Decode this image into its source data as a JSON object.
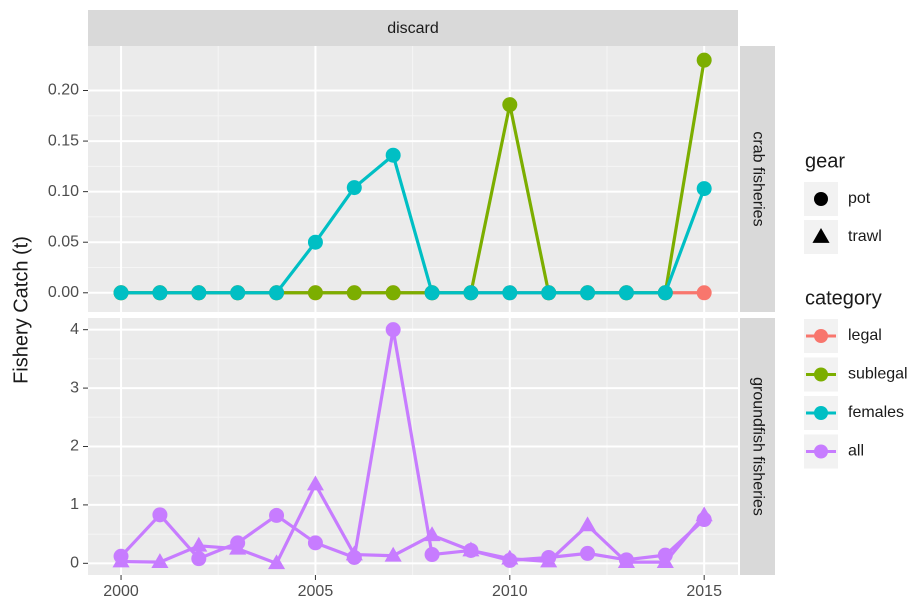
{
  "chart_data": {
    "type": "line",
    "facet_column": "discard",
    "y_label": "Fishery Catch (t)",
    "x": [
      2000,
      2001,
      2002,
      2003,
      2004,
      2005,
      2006,
      2007,
      2008,
      2009,
      2010,
      2011,
      2012,
      2013,
      2014,
      2015
    ],
    "xlim": [
      1999.15,
      2015.87
    ],
    "xticks": [
      2000,
      2005,
      2010,
      2015
    ],
    "grid": true,
    "gear_legend": {
      "title": "gear",
      "items": [
        "pot",
        "trawl"
      ]
    },
    "category_legend": {
      "title": "category",
      "items": [
        {
          "name": "legal",
          "color": "#F8766D"
        },
        {
          "name": "sublegal",
          "color": "#7CAE00"
        },
        {
          "name": "females",
          "color": "#00BFC4"
        },
        {
          "name": "all",
          "color": "#C77CFF"
        }
      ]
    },
    "panels": [
      {
        "label": "crab fisheries",
        "ylim": [
          -0.019,
          0.244
        ],
        "yticks": [
          {
            "value": 0,
            "label": "0.00"
          },
          {
            "value": 0.05,
            "label": "0.05"
          },
          {
            "value": 0.1,
            "label": "0.10"
          },
          {
            "value": 0.15,
            "label": "0.15"
          },
          {
            "value": 0.2,
            "label": "0.20"
          }
        ],
        "series": [
          {
            "name": "legal",
            "gear": "pot",
            "values": [
              0,
              0,
              0,
              0,
              0,
              0,
              0,
              0,
              0,
              0,
              0,
              0,
              0,
              0,
              0,
              0
            ]
          },
          {
            "name": "sublegal",
            "gear": "pot",
            "values": [
              0,
              0,
              0,
              0,
              0,
              0,
              0,
              0,
              0,
              0,
              0.186,
              0,
              0,
              0,
              0,
              0.23
            ]
          },
          {
            "name": "females",
            "gear": "pot",
            "values": [
              0,
              0,
              0,
              0,
              0,
              0.05,
              0.104,
              0.136,
              0,
              0,
              0,
              0,
              0,
              0,
              0,
              0.103
            ]
          }
        ]
      },
      {
        "label": "groundfish fisheries",
        "ylim": [
          -0.2,
          4.2
        ],
        "yticks": [
          0,
          1,
          2,
          3,
          4
        ],
        "series": [
          {
            "name": "all",
            "gear": "pot",
            "values": [
              0.12,
              0.83,
              0.08,
              0.35,
              0.82,
              0.35,
              0.1,
              4.0,
              0.15,
              0.22,
              0.05,
              0.1,
              0.17,
              0.06,
              0.14,
              0.75
            ]
          },
          {
            "name": "all",
            "gear": "trawl",
            "values": [
              0.03,
              0.02,
              0.3,
              0.25,
              0.0,
              1.35,
              0.15,
              0.13,
              0.48,
              0.22,
              0.08,
              0.03,
              0.65,
              0.02,
              0.02,
              0.82
            ]
          }
        ]
      }
    ]
  }
}
